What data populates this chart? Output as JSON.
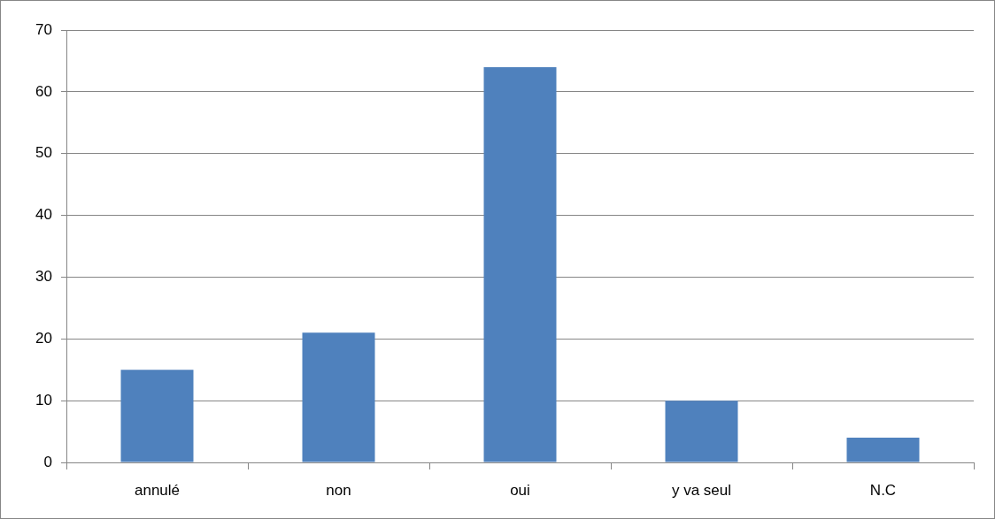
{
  "chart_data": {
    "type": "bar",
    "categories": [
      "annulé",
      "non",
      "oui",
      "y va seul",
      "N.C"
    ],
    "values": [
      15,
      21,
      64,
      10,
      4
    ],
    "color": "#4f81bd",
    "ylim": [
      0,
      70
    ],
    "yticks": [
      0,
      10,
      20,
      30,
      40,
      50,
      60,
      70
    ],
    "grid": "y",
    "legend": false
  }
}
